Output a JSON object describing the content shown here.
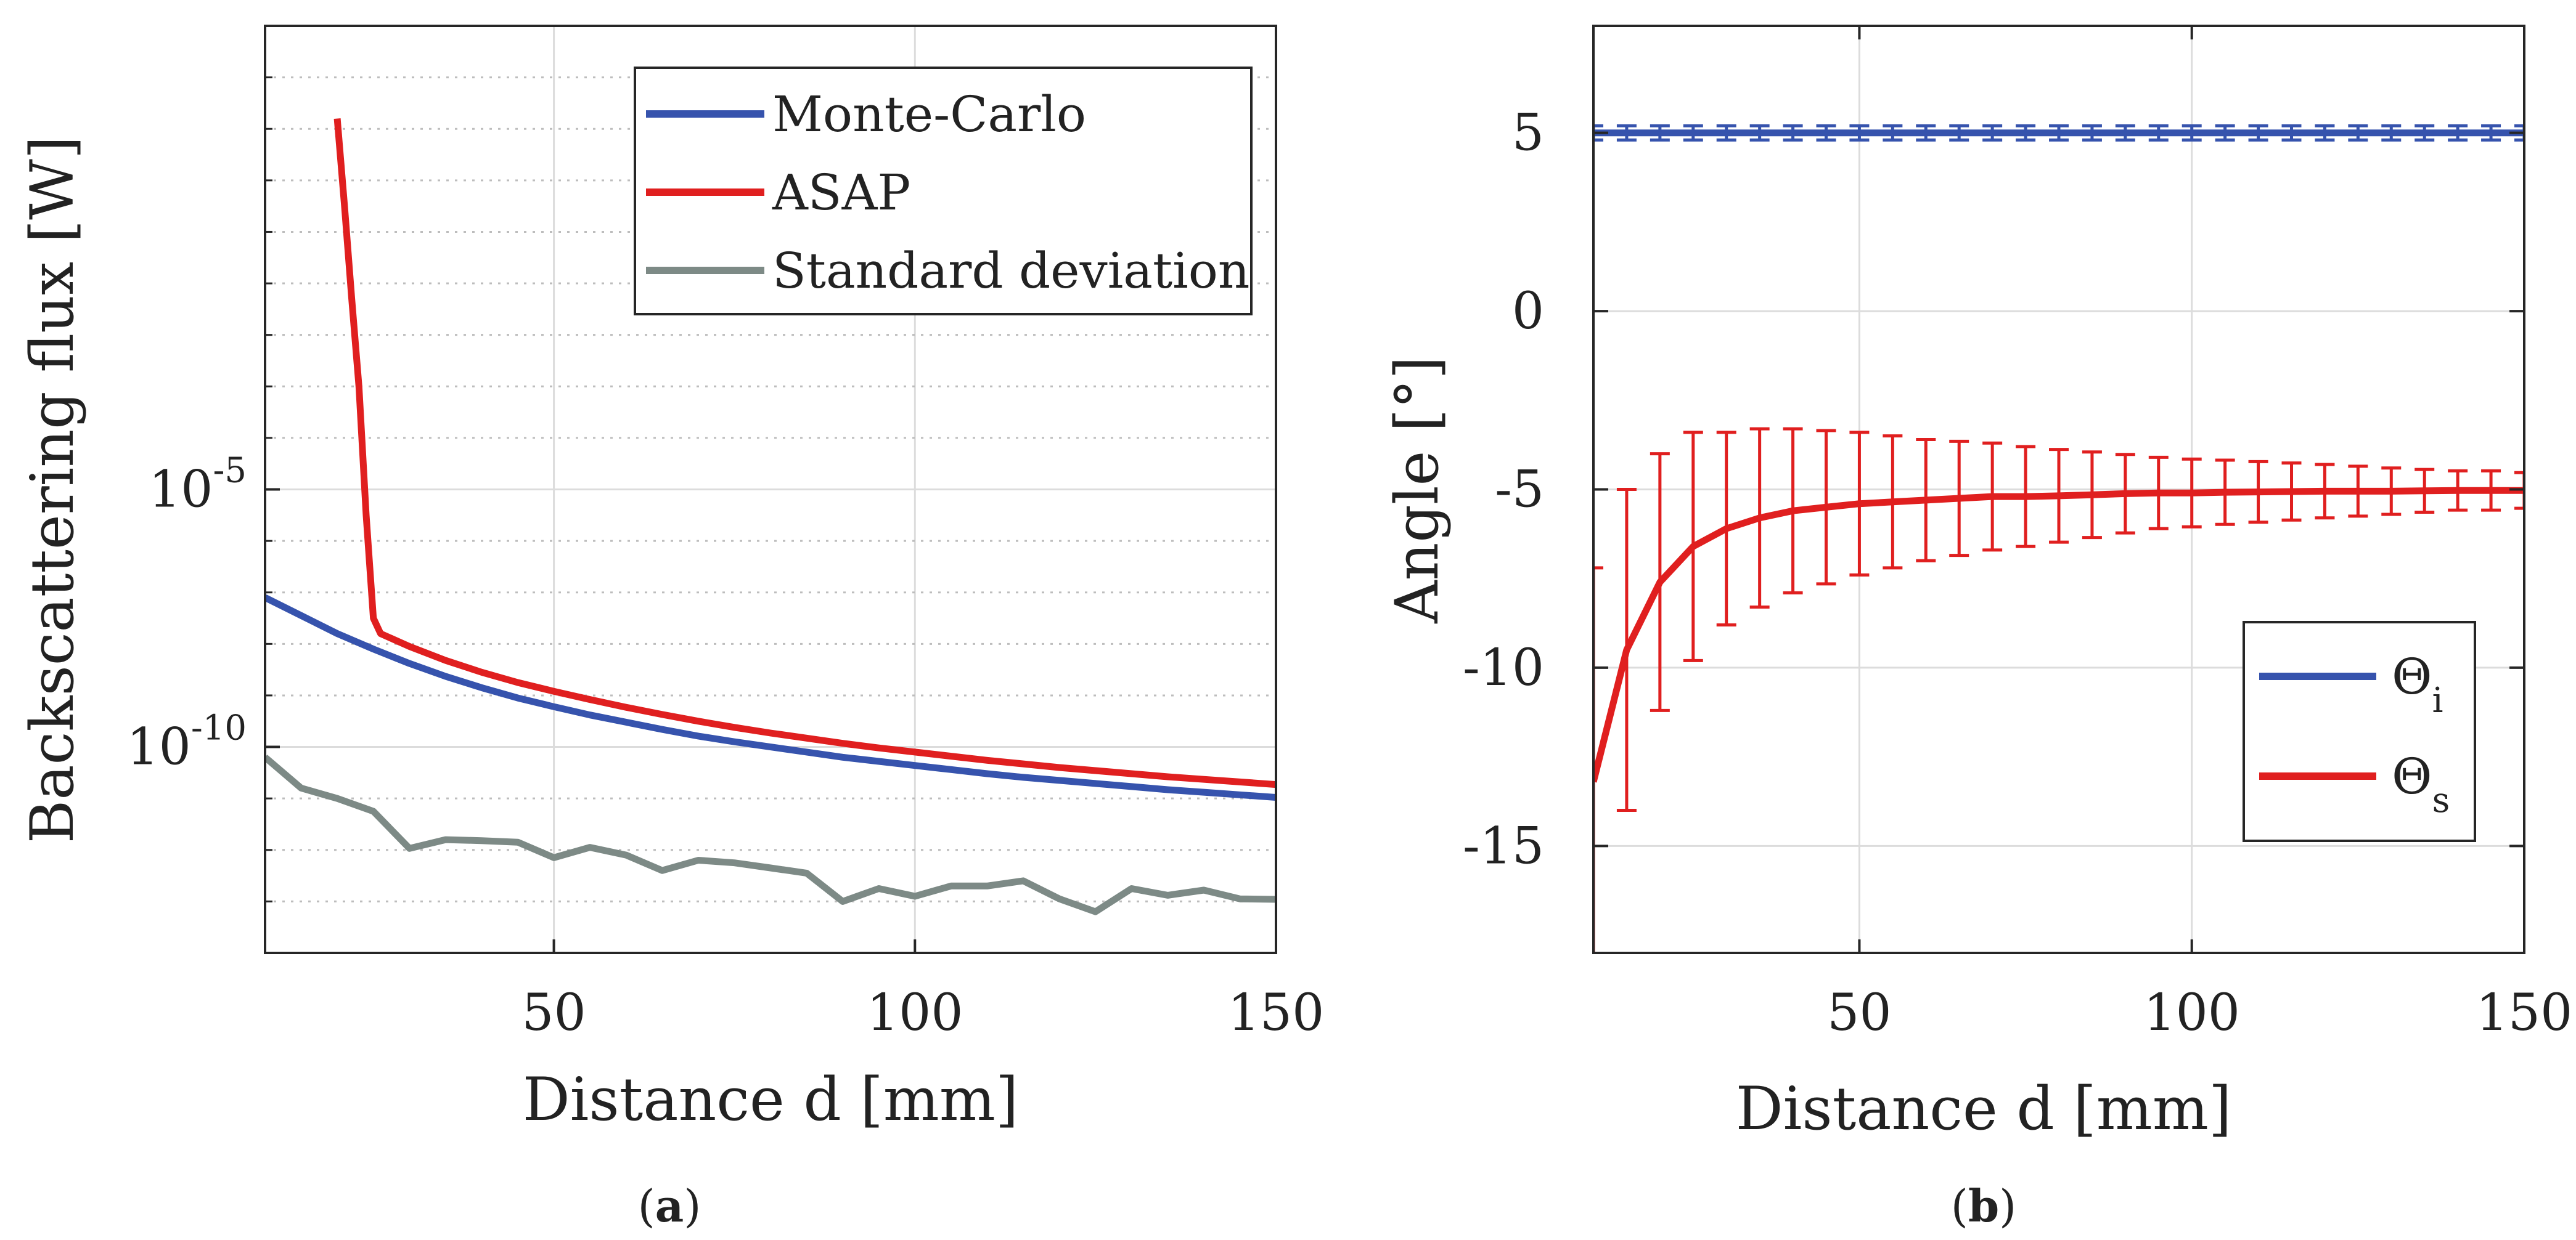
{
  "chart_data": [
    {
      "type": "line",
      "panel": "a",
      "panel_label_parts": [
        "(",
        "a",
        ")"
      ],
      "xlabel": "Distance d [mm]",
      "ylabel": "Backscattering flux [W]",
      "y_scale": "log",
      "xlim": [
        10,
        150
      ],
      "ylim_log10": [
        -14,
        4
      ],
      "x_ticks": [
        50,
        100,
        150
      ],
      "y_ticks": [
        {
          "exp": -5,
          "base": "10",
          "sup": "-5"
        },
        {
          "exp": -10,
          "base": "10",
          "sup": "-10"
        }
      ],
      "grid": true,
      "legend_position": "top-right",
      "series": [
        {
          "name": "Monte-Carlo",
          "color": "#3653ad",
          "x": [
            10,
            15,
            20,
            25,
            30,
            35,
            40,
            45,
            50,
            55,
            60,
            65,
            70,
            75,
            80,
            85,
            90,
            95,
            100,
            105,
            110,
            115,
            120,
            125,
            130,
            135,
            140,
            145,
            150
          ],
          "log10_y": [
            -7.1,
            -7.45,
            -7.8,
            -8.1,
            -8.38,
            -8.63,
            -8.85,
            -9.05,
            -9.22,
            -9.38,
            -9.52,
            -9.66,
            -9.79,
            -9.9,
            -10.0,
            -10.1,
            -10.2,
            -10.28,
            -10.36,
            -10.44,
            -10.52,
            -10.59,
            -10.65,
            -10.71,
            -10.77,
            -10.83,
            -10.88,
            -10.93,
            -10.98
          ]
        },
        {
          "name": "ASAP",
          "color": "#e01f1f",
          "x": [
            20,
            21,
            22,
            23,
            24,
            25,
            26,
            30,
            35,
            40,
            45,
            50,
            55,
            60,
            65,
            70,
            75,
            80,
            85,
            90,
            95,
            100,
            105,
            110,
            115,
            120,
            125,
            130,
            135,
            140,
            145,
            150
          ],
          "log10_y": [
            2.2,
            0.5,
            -1.3,
            -3.0,
            -5.5,
            -7.5,
            -7.8,
            -8.05,
            -8.32,
            -8.55,
            -8.75,
            -8.92,
            -9.08,
            -9.23,
            -9.37,
            -9.5,
            -9.62,
            -9.73,
            -9.83,
            -9.93,
            -10.02,
            -10.1,
            -10.18,
            -10.26,
            -10.33,
            -10.4,
            -10.46,
            -10.52,
            -10.58,
            -10.63,
            -10.68,
            -10.73
          ]
        },
        {
          "name": "Standard deviation",
          "color": "#7d8a86",
          "x": [
            10,
            15,
            20,
            25,
            30,
            35,
            40,
            45,
            50,
            55,
            60,
            65,
            70,
            75,
            80,
            85,
            90,
            95,
            100,
            105,
            110,
            115,
            120,
            125,
            130,
            135,
            140,
            145,
            150
          ],
          "log10_y": [
            -10.2,
            -10.8,
            -11.0,
            -11.25,
            -11.97,
            -11.8,
            -11.82,
            -11.85,
            -12.15,
            -11.95,
            -12.1,
            -12.4,
            -12.2,
            -12.25,
            -12.35,
            -12.45,
            -13.0,
            -12.75,
            -12.9,
            -12.7,
            -12.7,
            -12.6,
            -12.95,
            -13.2,
            -12.75,
            -12.88,
            -12.78,
            -12.95,
            -12.96
          ]
        }
      ]
    },
    {
      "type": "line",
      "panel": "b",
      "panel_label_parts": [
        "(",
        "b",
        ")"
      ],
      "xlabel": "Distance d [mm]",
      "ylabel": "Angle [°]",
      "xlim": [
        10,
        150
      ],
      "ylim": [
        -18,
        8
      ],
      "x_ticks": [
        50,
        100,
        150
      ],
      "y_ticks": [
        5,
        0,
        -5,
        -10,
        -15
      ],
      "grid": true,
      "legend_position": "bottom-right",
      "series": [
        {
          "name": "Θi",
          "label_base": "Θ",
          "label_sub": "i",
          "color": "#3653ad",
          "x": [
            10,
            15,
            20,
            25,
            30,
            35,
            40,
            45,
            50,
            55,
            60,
            65,
            70,
            75,
            80,
            85,
            90,
            95,
            100,
            105,
            110,
            115,
            120,
            125,
            130,
            135,
            140,
            145,
            150
          ],
          "y": [
            5,
            5,
            5,
            5,
            5,
            5,
            5,
            5,
            5,
            5,
            5,
            5,
            5,
            5,
            5,
            5,
            5,
            5,
            5,
            5,
            5,
            5,
            5,
            5,
            5,
            5,
            5,
            5,
            5
          ],
          "error": [
            0.2,
            0.2,
            0.2,
            0.2,
            0.2,
            0.2,
            0.2,
            0.2,
            0.2,
            0.2,
            0.2,
            0.2,
            0.2,
            0.2,
            0.2,
            0.2,
            0.2,
            0.2,
            0.2,
            0.2,
            0.2,
            0.2,
            0.2,
            0.2,
            0.2,
            0.2,
            0.2,
            0.2,
            0.2
          ]
        },
        {
          "name": "Θs",
          "label_base": "Θ",
          "label_sub": "s",
          "color": "#e01f1f",
          "x": [
            10,
            15,
            20,
            25,
            30,
            35,
            40,
            45,
            50,
            55,
            60,
            65,
            70,
            75,
            80,
            85,
            90,
            95,
            100,
            105,
            110,
            115,
            120,
            125,
            130,
            135,
            140,
            145,
            150
          ],
          "y": [
            -13.2,
            -9.5,
            -7.6,
            -6.6,
            -6.1,
            -5.8,
            -5.6,
            -5.5,
            -5.4,
            -5.35,
            -5.3,
            -5.25,
            -5.2,
            -5.2,
            -5.18,
            -5.15,
            -5.12,
            -5.1,
            -5.1,
            -5.08,
            -5.07,
            -5.06,
            -5.05,
            -5.05,
            -5.05,
            -5.04,
            -5.03,
            -5.03,
            -5.03
          ],
          "error": [
            6.0,
            4.5,
            3.6,
            3.2,
            2.7,
            2.5,
            2.3,
            2.15,
            2.0,
            1.85,
            1.7,
            1.6,
            1.5,
            1.4,
            1.3,
            1.2,
            1.1,
            1.0,
            0.95,
            0.9,
            0.85,
            0.8,
            0.75,
            0.7,
            0.65,
            0.6,
            0.55,
            0.55,
            0.5
          ]
        }
      ]
    }
  ]
}
